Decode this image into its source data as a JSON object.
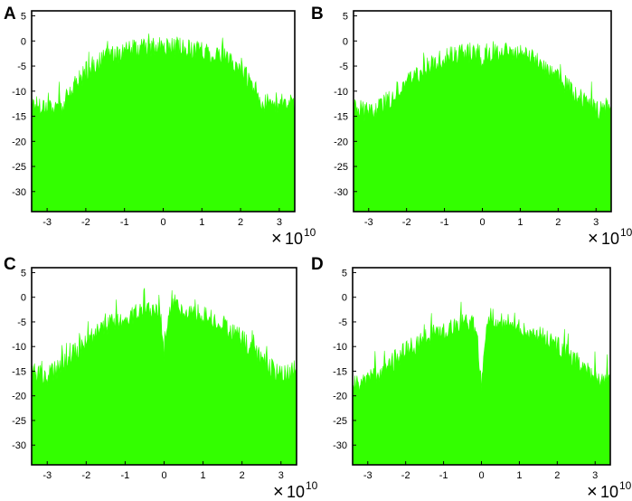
{
  "chart_data": [
    {
      "panel": "A",
      "type": "area",
      "x_multiplier_label": {
        "times": "×",
        "base": "10",
        "power": "10"
      },
      "xlim": [
        -3.4,
        3.4
      ],
      "ylim": [
        -34,
        6
      ],
      "xticks": [
        -3,
        -2,
        -1,
        0,
        1,
        2,
        3
      ],
      "xtick_labels": [
        "-3",
        "-2",
        "-1",
        "0",
        "1",
        "2",
        "3"
      ],
      "yticks": [
        5,
        0,
        -5,
        -10,
        -15,
        -20,
        -25,
        -30
      ],
      "ytick_labels": [
        "5",
        "0",
        "-5",
        "-10",
        "-15",
        "-20",
        "-25",
        "-30"
      ],
      "series": [
        {
          "color": "#33ff00",
          "x": [
            -3.4,
            -3.0,
            -2.6,
            -2.3,
            -2.0,
            -1.5,
            -1.0,
            -0.5,
            0.0,
            0.5,
            1.0,
            1.5,
            2.0,
            2.3,
            2.6,
            3.0,
            3.4
          ],
          "y": [
            -12.5,
            -13,
            -13,
            -9,
            -6,
            -3.5,
            -2,
            -1.5,
            -1.2,
            -1.5,
            -1.8,
            -3,
            -5.5,
            -9,
            -12.5,
            -12.5,
            -12.5
          ]
        }
      ]
    },
    {
      "panel": "B",
      "type": "area",
      "x_multiplier_label": {
        "times": "×",
        "base": "10",
        "power": "10"
      },
      "xlim": [
        -3.4,
        3.4
      ],
      "ylim": [
        -34,
        6
      ],
      "xticks": [
        -3,
        -2,
        -1,
        0,
        1,
        2,
        3
      ],
      "xtick_labels": [
        "-3",
        "-2",
        "-1",
        "0",
        "1",
        "2",
        "3"
      ],
      "yticks": [
        5,
        0,
        -5,
        -10,
        -15,
        -20,
        -25,
        -30
      ],
      "ytick_labels": [
        "5",
        "0",
        "-5",
        "-10",
        "-15",
        "-20",
        "-25",
        "-30"
      ],
      "series": [
        {
          "color": "#33ff00",
          "x": [
            -3.4,
            -3.0,
            -2.5,
            -2.0,
            -1.5,
            -1.0,
            -0.5,
            -0.1,
            0.0,
            0.1,
            0.5,
            1.0,
            1.5,
            2.0,
            2.5,
            3.0,
            3.4
          ],
          "y": [
            -13,
            -14.5,
            -12,
            -8,
            -5.5,
            -3.5,
            -2.5,
            -2.2,
            -5.5,
            -2.2,
            -2,
            -2.5,
            -4,
            -7,
            -11,
            -14,
            -13
          ]
        }
      ]
    },
    {
      "panel": "C",
      "type": "area",
      "x_multiplier_label": {
        "times": "×",
        "base": "10",
        "power": "10"
      },
      "xlim": [
        -3.4,
        3.4
      ],
      "ylim": [
        -34,
        6
      ],
      "xticks": [
        -3,
        -2,
        -1,
        0,
        1,
        2,
        3
      ],
      "xtick_labels": [
        "-3",
        "-2",
        "-1",
        "0",
        "1",
        "2",
        "3"
      ],
      "yticks": [
        5,
        0,
        -5,
        -10,
        -15,
        -20,
        -25,
        -30
      ],
      "ytick_labels": [
        "5",
        "0",
        "-5",
        "-10",
        "-15",
        "-20",
        "-25",
        "-30"
      ],
      "series": [
        {
          "color": "#33ff00",
          "x": [
            -3.4,
            -3.0,
            -2.5,
            -2.0,
            -1.5,
            -1.0,
            -0.5,
            -0.15,
            -0.05,
            0.0,
            0.05,
            0.15,
            0.5,
            1.0,
            1.5,
            2.0,
            2.5,
            3.0,
            3.4
          ],
          "y": [
            -15,
            -16,
            -13,
            -9,
            -6,
            -4,
            -3,
            -2.5,
            -6,
            -13,
            -6,
            -2,
            -2.5,
            -3.5,
            -5.5,
            -8.5,
            -12.5,
            -16,
            -15
          ]
        }
      ]
    },
    {
      "panel": "D",
      "type": "area",
      "x_multiplier_label": {
        "times": "×",
        "base": "10",
        "power": "10"
      },
      "xlim": [
        -3.4,
        3.4
      ],
      "ylim": [
        -34,
        6
      ],
      "xticks": [
        -3,
        -2,
        -1,
        0,
        1,
        2,
        3
      ],
      "xtick_labels": [
        "-3",
        "-2",
        "-1",
        "0",
        "1",
        "2",
        "3"
      ],
      "yticks": [
        5,
        0,
        -5,
        -10,
        -15,
        -20,
        -25,
        -30
      ],
      "ytick_labels": [
        "5",
        "0",
        "-5",
        "-10",
        "-15",
        "-20",
        "-25",
        "-30"
      ],
      "series": [
        {
          "color": "#33ff00",
          "x": [
            -3.4,
            -3.0,
            -2.5,
            -2.0,
            -1.5,
            -1.0,
            -0.5,
            -0.25,
            -0.1,
            0.0,
            0.1,
            0.25,
            0.5,
            1.0,
            1.5,
            2.0,
            2.5,
            3.0,
            3.4
          ],
          "y": [
            -18,
            -17,
            -14,
            -11,
            -8.5,
            -6.5,
            -5.5,
            -5,
            -9,
            -19,
            -9,
            -4,
            -5,
            -6,
            -7.5,
            -10,
            -13,
            -16.5,
            -17
          ]
        }
      ]
    }
  ]
}
